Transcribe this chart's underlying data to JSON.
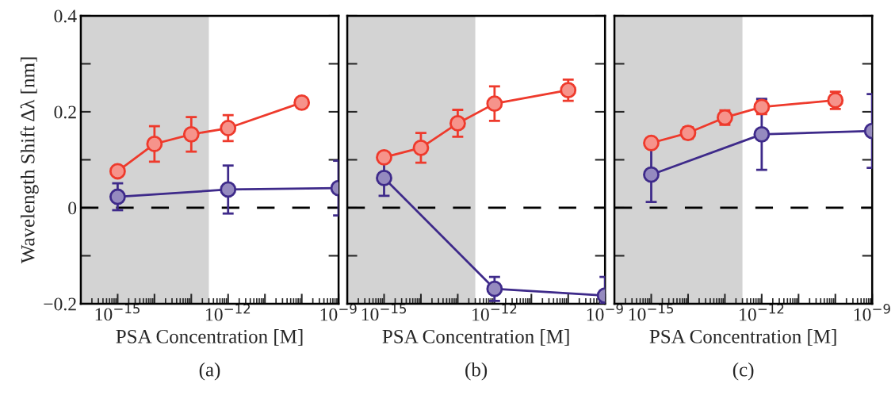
{
  "chart_data": [
    {
      "type": "line",
      "ylabel": "Wavelength Shift Δλ [nm]",
      "xlabel": "PSA Concentration [M]",
      "annotations": [
        "(a)"
      ],
      "log": "x",
      "xlim": [
        1e-16,
        1e-09
      ],
      "ylim": [
        -0.2,
        0.4
      ],
      "xticks": [
        {
          "value": 1e-15,
          "label": "10$^{−15}$"
        },
        {
          "value": 1e-14,
          "label": null
        },
        {
          "value": 1e-13,
          "label": null
        },
        {
          "value": 1e-12,
          "label": "10$^{−12}$"
        },
        {
          "value": 1e-11,
          "label": null
        },
        {
          "value": 1e-10,
          "label": null
        },
        {
          "value": 1e-09,
          "label": "10$^{−9}$"
        }
      ],
      "yticks": [
        {
          "value": -0.2,
          "label": "−0.2"
        },
        {
          "value": -0.1,
          "label": null
        },
        0,
        {
          "value": 0.1,
          "label": null
        },
        0.2,
        {
          "value": 0.3,
          "label": null
        },
        0.4
      ],
      "grid": false,
      "legend": false,
      "marker": "circle",
      "line_style": "solid",
      "bands": [
        {
          "axis": "x",
          "from": 1e-16,
          "to": 3e-13,
          "color": "#d3d3d3"
        }
      ],
      "ref_lines": [
        {
          "axis": "y",
          "value": 0,
          "color": "#000000",
          "line_style": "dashed"
        }
      ],
      "series": [
        {
          "color": "#ee3a2c",
          "x": [
            1e-15,
            1e-14,
            1e-13,
            1e-12,
            1e-10
          ],
          "values": [
            0.076,
            0.133,
            0.153,
            0.166,
            0.219
          ],
          "errors": [
            0.008,
            0.037,
            0.036,
            0.027,
            0.01
          ]
        },
        {
          "color": "#3e2a8a",
          "x": [
            1e-15,
            1e-12,
            1e-09
          ],
          "values": [
            0.023,
            0.038,
            0.041
          ],
          "errors": [
            0.028,
            0.05,
            0.057
          ]
        }
      ]
    },
    {
      "type": "line",
      "xlabel": "PSA Concentration [M]",
      "annotations": [
        "(b)"
      ],
      "log": "x",
      "xlim": [
        1e-16,
        1e-09
      ],
      "ylim": [
        -0.2,
        0.4
      ],
      "tick_labels": "x",
      "xticks": [
        {
          "value": 1e-15,
          "label": "10$^{−15}$"
        },
        {
          "value": 1e-14,
          "label": null
        },
        {
          "value": 1e-13,
          "label": null
        },
        {
          "value": 1e-12,
          "label": "10$^{−12}$"
        },
        {
          "value": 1e-11,
          "label": null
        },
        {
          "value": 1e-10,
          "label": null
        },
        {
          "value": 1e-09,
          "label": "10$^{−9}$"
        }
      ],
      "yticks": [
        {
          "value": -0.2,
          "label": null
        },
        {
          "value": -0.1,
          "label": null
        },
        {
          "value": 0,
          "label": null
        },
        {
          "value": 0.1,
          "label": null
        },
        {
          "value": 0.2,
          "label": null
        },
        {
          "value": 0.3,
          "label": null
        },
        {
          "value": 0.4,
          "label": null
        }
      ],
      "grid": false,
      "legend": false,
      "marker": "circle",
      "line_style": "solid",
      "bands": [
        {
          "axis": "x",
          "from": 1e-16,
          "to": 3e-13,
          "color": "#d3d3d3"
        }
      ],
      "ref_lines": [
        {
          "axis": "y",
          "value": 0,
          "color": "#000000",
          "line_style": "dashed"
        }
      ],
      "series": [
        {
          "color": "#ee3a2c",
          "x": [
            1e-15,
            1e-14,
            1e-13,
            1e-12,
            1e-10
          ],
          "values": [
            0.105,
            0.125,
            0.176,
            0.217,
            0.245
          ],
          "errors": [
            0.01,
            0.031,
            0.028,
            0.036,
            0.022
          ]
        },
        {
          "color": "#3e2a8a",
          "x": [
            1e-15,
            1e-12,
            1e-09
          ],
          "values": [
            0.062,
            -0.169,
            -0.183
          ],
          "errors": [
            0.037,
            0.025,
            [
              -0.2,
              -0.144
            ]
          ]
        }
      ]
    },
    {
      "type": "line",
      "xlabel": "PSA Concentration [M]",
      "annotations": [
        "(c)"
      ],
      "log": "x",
      "xlim": [
        1e-16,
        1e-09
      ],
      "ylim": [
        -0.2,
        0.4
      ],
      "tick_labels": "x",
      "xticks": [
        {
          "value": 1e-15,
          "label": "10$^{−15}$"
        },
        {
          "value": 1e-14,
          "label": null
        },
        {
          "value": 1e-13,
          "label": null
        },
        {
          "value": 1e-12,
          "label": "10$^{−12}$"
        },
        {
          "value": 1e-11,
          "label": null
        },
        {
          "value": 1e-10,
          "label": null
        },
        {
          "value": 1e-09,
          "label": "10$^{−9}$"
        }
      ],
      "yticks": [
        {
          "value": -0.2,
          "label": null
        },
        {
          "value": -0.1,
          "label": null
        },
        {
          "value": 0,
          "label": null
        },
        {
          "value": 0.1,
          "label": null
        },
        {
          "value": 0.2,
          "label": null
        },
        {
          "value": 0.3,
          "label": null
        },
        {
          "value": 0.4,
          "label": null
        }
      ],
      "grid": false,
      "legend": false,
      "marker": "circle",
      "line_style": "solid",
      "bands": [
        {
          "axis": "x",
          "from": 1e-16,
          "to": 3e-13,
          "color": "#d3d3d3"
        }
      ],
      "ref_lines": [
        {
          "axis": "y",
          "value": 0,
          "color": "#000000",
          "line_style": "dashed"
        }
      ],
      "series": [
        {
          "color": "#ee3a2c",
          "x": [
            1e-15,
            1e-14,
            1e-13,
            1e-12,
            1e-10
          ],
          "values": [
            0.135,
            0.156,
            0.188,
            0.21,
            0.224
          ],
          "errors": [
            0.01,
            0.012,
            0.015,
            0.015,
            0.018
          ]
        },
        {
          "color": "#3e2a8a",
          "x": [
            1e-15,
            1e-12,
            1e-09
          ],
          "values": [
            0.069,
            0.153,
            0.16
          ],
          "errors": [
            0.057,
            0.074,
            0.077
          ]
        }
      ]
    }
  ]
}
